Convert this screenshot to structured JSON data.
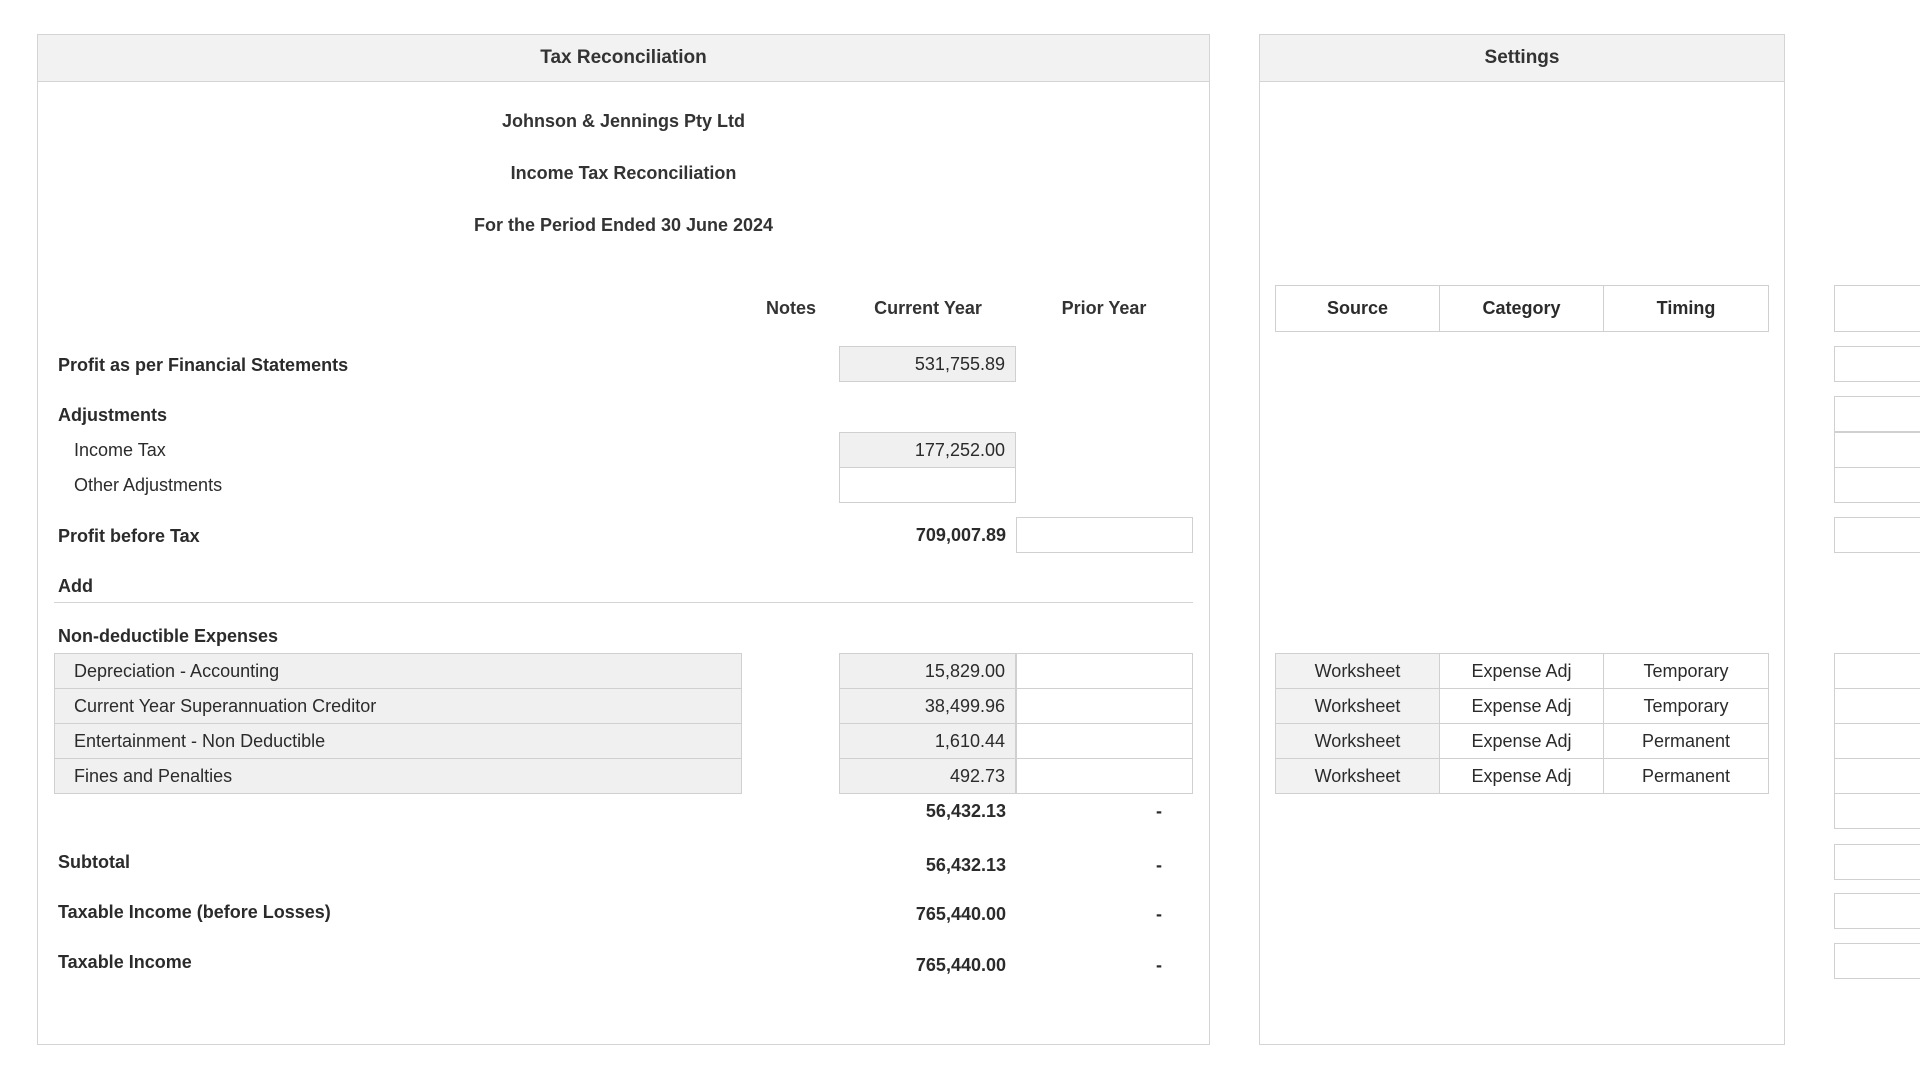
{
  "recon": {
    "title": "Tax Reconciliation",
    "company": "Johnson & Jennings Pty Ltd",
    "report": "Income Tax Reconciliation",
    "period": "For the Period Ended 30 June 2024",
    "columns": {
      "notes": "Notes",
      "current": "Current Year",
      "prior": "Prior Year"
    },
    "profit_fs": {
      "label": "Profit as per Financial Statements",
      "current": "531,755.89"
    },
    "adjustments": {
      "label": "Adjustments",
      "income_tax": {
        "label": "Income Tax",
        "current": "177,252.00"
      },
      "other": {
        "label": "Other Adjustments",
        "current": ""
      }
    },
    "profit_before_tax": {
      "label": "Profit before Tax",
      "current": "709,007.89",
      "prior": ""
    },
    "add_label": "Add",
    "nde": {
      "label": "Non-deductible Expenses",
      "items": [
        {
          "label": "Depreciation - Accounting",
          "current": "15,829.00",
          "prior": ""
        },
        {
          "label": "Current Year Superannuation Creditor",
          "current": "38,499.96",
          "prior": ""
        },
        {
          "label": "Entertainment - Non Deductible",
          "current": "1,610.44",
          "prior": ""
        },
        {
          "label": "Fines and Penalties",
          "current": "492.73",
          "prior": ""
        }
      ],
      "total_current": "56,432.13",
      "total_prior": "-"
    },
    "subtotal": {
      "label": "Subtotal",
      "current": "56,432.13",
      "prior": "-"
    },
    "taxable_before_losses": {
      "label": "Taxable Income (before Losses)",
      "current": "765,440.00",
      "prior": "-"
    },
    "taxable": {
      "label": "Taxable Income",
      "current": "765,440.00",
      "prior": "-"
    }
  },
  "settings": {
    "title": "Settings",
    "headers": {
      "source": "Source",
      "category": "Category",
      "timing": "Timing"
    },
    "rows": [
      {
        "source": "Worksheet",
        "category": "Expense Adj",
        "timing": "Temporary"
      },
      {
        "source": "Worksheet",
        "category": "Expense Adj",
        "timing": "Temporary"
      },
      {
        "source": "Worksheet",
        "category": "Expense Adj",
        "timing": "Permanent"
      },
      {
        "source": "Worksheet",
        "category": "Expense Adj",
        "timing": "Permanent"
      }
    ]
  }
}
